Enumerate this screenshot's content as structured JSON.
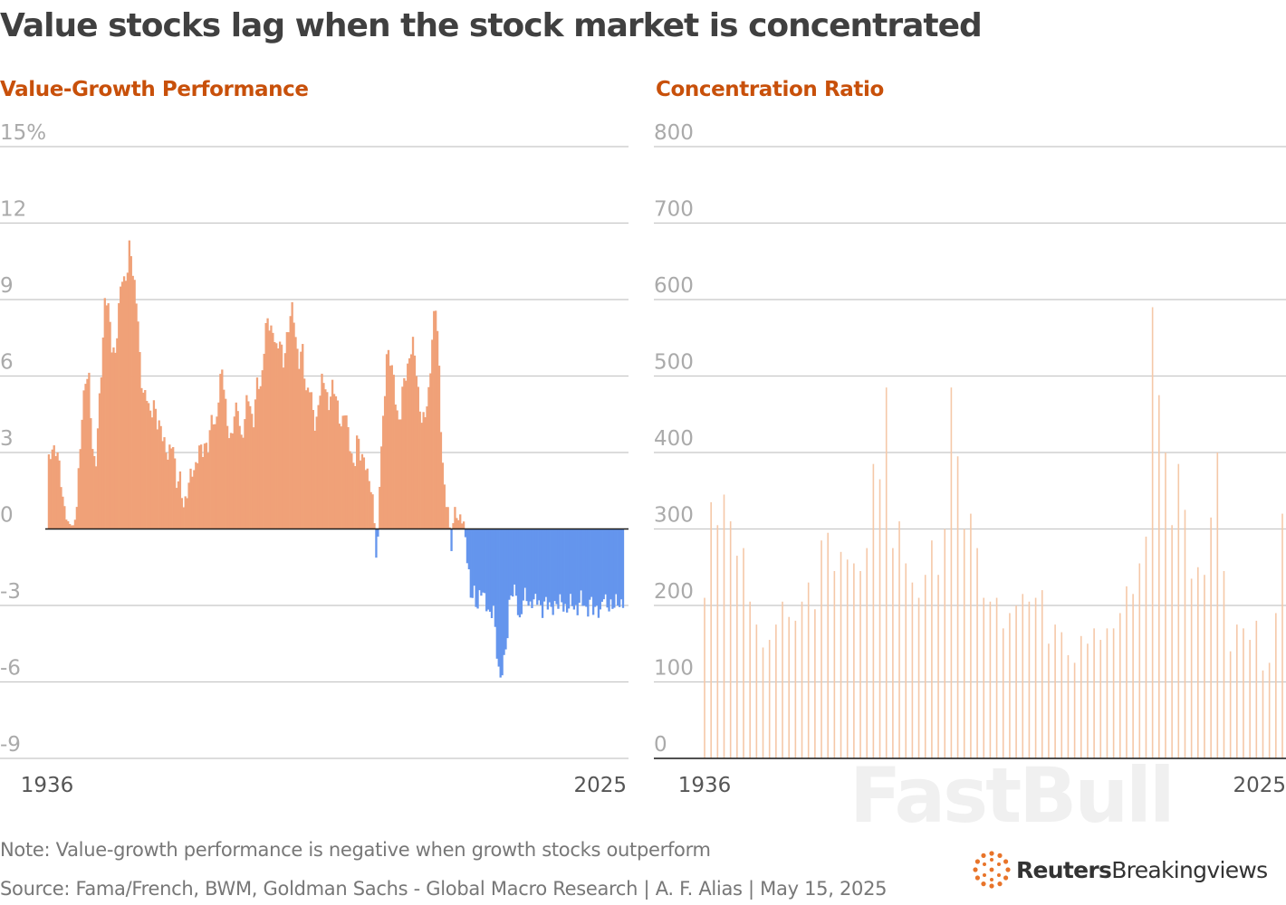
{
  "title": "Value stocks lag when the stock market is concentrated",
  "note": "Note: Value-growth performance is negative when growth stocks outperform",
  "source": "Source: Fama/French, BWM, Goldman Sachs - Global Macro Research | A. F. Alias | May 15, 2025",
  "watermark": "FastBull",
  "logo": {
    "brand": "Reuters",
    "product": "Breakingviews"
  },
  "colors": {
    "positive": "#f0a178",
    "negative": "#6495ed",
    "concentration": "#f5c8a8",
    "panel_title": "#c8500a",
    "grid": "#c8c8c8",
    "baseline": "#1a1a1a"
  },
  "chart_data": [
    {
      "type": "bar",
      "panel_title": "Value-Growth Performance",
      "y_unit": "%",
      "ylim": [
        -9,
        15
      ],
      "yticks": [
        15,
        12,
        9,
        6,
        3,
        0,
        -3,
        -6,
        -9
      ],
      "ytick_labels": [
        "15%",
        "12",
        "9",
        "6",
        "3",
        "0",
        "-3",
        "-6",
        "-9"
      ],
      "xlim": [
        1936,
        2025
      ],
      "xtick_labels": [
        "1936",
        "2025"
      ],
      "grid": true,
      "points": [
        [
          1936,
          0.0
        ],
        [
          1936.2,
          2.8
        ],
        [
          1936.6,
          3.2
        ],
        [
          1937,
          3.0
        ],
        [
          1937.5,
          2.9
        ],
        [
          1938,
          2.6
        ],
        [
          1938.5,
          1.0
        ],
        [
          1939,
          0.4
        ],
        [
          1939.5,
          0.2
        ],
        [
          1940,
          0.1
        ],
        [
          1940.5,
          0.5
        ],
        [
          1941,
          2.5
        ],
        [
          1941.5,
          5.0
        ],
        [
          1942,
          6.0
        ],
        [
          1942.5,
          5.7
        ],
        [
          1943,
          3.3
        ],
        [
          1943.5,
          2.5
        ],
        [
          1944,
          4.5
        ],
        [
          1944.5,
          6.5
        ],
        [
          1945,
          9.5
        ],
        [
          1945.5,
          8.7
        ],
        [
          1946,
          7.0
        ],
        [
          1946.5,
          6.8
        ],
        [
          1947,
          8.5
        ],
        [
          1947.5,
          9.8
        ],
        [
          1948,
          9.5
        ],
        [
          1948.5,
          10.5
        ],
        [
          1948.8,
          11.5
        ],
        [
          1949.2,
          10.0
        ],
        [
          1949.5,
          9.4
        ],
        [
          1950,
          8.7
        ],
        [
          1950.5,
          6.0
        ],
        [
          1951,
          5.0
        ],
        [
          1951.5,
          5.2
        ],
        [
          1952,
          4.6
        ],
        [
          1952.5,
          4.9
        ],
        [
          1953,
          4.0
        ],
        [
          1953.5,
          4.2
        ],
        [
          1954,
          3.7
        ],
        [
          1954.5,
          2.6
        ],
        [
          1955,
          3.1
        ],
        [
          1955.5,
          3.6
        ],
        [
          1956,
          1.6
        ],
        [
          1956.5,
          2.0
        ],
        [
          1957,
          1.1
        ],
        [
          1957.5,
          1.2
        ],
        [
          1958,
          1.8
        ],
        [
          1958.5,
          2.3
        ],
        [
          1959,
          2.6
        ],
        [
          1959.5,
          3.1
        ],
        [
          1960,
          2.9
        ],
        [
          1960.5,
          3.5
        ],
        [
          1961,
          3.3
        ],
        [
          1961.5,
          4.4
        ],
        [
          1962,
          3.9
        ],
        [
          1962.5,
          5.3
        ],
        [
          1963,
          6.3
        ],
        [
          1963.5,
          5.0
        ],
        [
          1964,
          4.0
        ],
        [
          1964.5,
          3.5
        ],
        [
          1965,
          4.4
        ],
        [
          1965.5,
          4.9
        ],
        [
          1966,
          3.6
        ],
        [
          1966.5,
          3.9
        ],
        [
          1967,
          5.4
        ],
        [
          1967.5,
          4.7
        ],
        [
          1968,
          4.2
        ],
        [
          1968.5,
          5.8
        ],
        [
          1969,
          5.5
        ],
        [
          1969.5,
          7.1
        ],
        [
          1970,
          8.2
        ],
        [
          1970.5,
          7.7
        ],
        [
          1971,
          8.0
        ],
        [
          1971.5,
          6.9
        ],
        [
          1972,
          7.3
        ],
        [
          1972.5,
          6.6
        ],
        [
          1973,
          7.5
        ],
        [
          1973.5,
          8.0
        ],
        [
          1974,
          8.8
        ],
        [
          1974.5,
          7.4
        ],
        [
          1975,
          6.4
        ],
        [
          1975.5,
          7.0
        ],
        [
          1976,
          5.4
        ],
        [
          1976.5,
          5.8
        ],
        [
          1977,
          4.7
        ],
        [
          1977.5,
          3.8
        ],
        [
          1978,
          5.3
        ],
        [
          1978.5,
          5.8
        ],
        [
          1979,
          5.5
        ],
        [
          1979.5,
          4.9
        ],
        [
          1980,
          5.7
        ],
        [
          1980.5,
          5.2
        ],
        [
          1981,
          4.7
        ],
        [
          1981.5,
          4.1
        ],
        [
          1982,
          4.6
        ],
        [
          1982.5,
          3.8
        ],
        [
          1983,
          3.1
        ],
        [
          1983.5,
          2.4
        ],
        [
          1984,
          3.6
        ],
        [
          1984.5,
          2.8
        ],
        [
          1985,
          3.0
        ],
        [
          1985.5,
          2.0
        ],
        [
          1986,
          1.6
        ],
        [
          1986.5,
          1.0
        ],
        [
          1987,
          -1.7
        ],
        [
          1987.5,
          2.5
        ],
        [
          1988,
          4.5
        ],
        [
          1988.5,
          7.1
        ],
        [
          1989,
          6.5
        ],
        [
          1989.5,
          6.0
        ],
        [
          1990,
          4.9
        ],
        [
          1990.5,
          4.0
        ],
        [
          1991,
          5.5
        ],
        [
          1991.5,
          6.2
        ],
        [
          1992,
          6.8
        ],
        [
          1992.5,
          7.2
        ],
        [
          1993,
          6.4
        ],
        [
          1993.5,
          5.1
        ],
        [
          1994,
          4.1
        ],
        [
          1994.5,
          4.4
        ],
        [
          1995,
          5.5
        ],
        [
          1995.5,
          7.5
        ],
        [
          1996,
          8.8
        ],
        [
          1996.5,
          7.0
        ],
        [
          1997,
          3.2
        ],
        [
          1997.5,
          1.2
        ],
        [
          1998,
          0.5
        ],
        [
          1998.5,
          -0.5
        ],
        [
          1999,
          0.9
        ],
        [
          1999.5,
          0.3
        ],
        [
          2000,
          0.6
        ],
        [
          2000.5,
          0.2
        ],
        [
          2001,
          -1.5
        ],
        [
          2001.5,
          -2.8
        ],
        [
          2002,
          -2.3
        ],
        [
          2002.5,
          -3.1
        ],
        [
          2003,
          -2.6
        ],
        [
          2003.5,
          -2.5
        ],
        [
          2004,
          -2.9
        ],
        [
          2004.5,
          -3.6
        ],
        [
          2005,
          -3.2
        ],
        [
          2005.5,
          -4.6
        ],
        [
          2006,
          -6.0
        ],
        [
          2006.5,
          -5.5
        ],
        [
          2007,
          -4.5
        ],
        [
          2007.5,
          -2.5
        ],
        [
          2008,
          -2.6
        ],
        [
          2008.5,
          -2.6
        ],
        [
          2009,
          -3.6
        ],
        [
          2009.5,
          -2.8
        ],
        [
          2010,
          -2.7
        ],
        [
          2010.5,
          -3.0
        ],
        [
          2011,
          -2.7
        ],
        [
          2011.5,
          -2.9
        ],
        [
          2012,
          -2.9
        ],
        [
          2012.5,
          -3.1
        ],
        [
          2013,
          -2.8
        ],
        [
          2013.5,
          -3.2
        ],
        [
          2014,
          -3.0
        ],
        [
          2014.5,
          -2.9
        ],
        [
          2015,
          -3.1
        ],
        [
          2015.5,
          -2.8
        ],
        [
          2016,
          -3.0
        ],
        [
          2016.5,
          -3.2
        ],
        [
          2017,
          -2.9
        ],
        [
          2017.5,
          -3.0
        ],
        [
          2018,
          -3.1
        ],
        [
          2018.5,
          -2.8
        ],
        [
          2019,
          -3.0
        ],
        [
          2019.5,
          -3.1
        ],
        [
          2020,
          -2.8
        ],
        [
          2020.5,
          -3.4
        ],
        [
          2021,
          -2.9
        ],
        [
          2021.5,
          -3.3
        ],
        [
          2022,
          -2.7
        ],
        [
          2022.5,
          -3.0
        ],
        [
          2023,
          -2.8
        ],
        [
          2023.5,
          -3.2
        ],
        [
          2024,
          -2.9
        ],
        [
          2024.5,
          -2.8
        ],
        [
          2025,
          -2.9
        ]
      ]
    },
    {
      "type": "bar",
      "panel_title": "Concentration Ratio",
      "ylim": [
        0,
        800
      ],
      "yticks": [
        800,
        700,
        600,
        500,
        400,
        300,
        200,
        100,
        0
      ],
      "ytick_labels": [
        "800",
        "700",
        "600",
        "500",
        "400",
        "300",
        "200",
        "100",
        "0"
      ],
      "xlim": [
        1936,
        2025
      ],
      "xtick_labels": [
        "1936",
        "2025"
      ],
      "grid": true,
      "points": [
        [
          1936,
          210
        ],
        [
          1937,
          335
        ],
        [
          1938,
          305
        ],
        [
          1939,
          345
        ],
        [
          1940,
          310
        ],
        [
          1941,
          265
        ],
        [
          1942,
          275
        ],
        [
          1943,
          205
        ],
        [
          1944,
          175
        ],
        [
          1945,
          145
        ],
        [
          1946,
          155
        ],
        [
          1947,
          175
        ],
        [
          1948,
          205
        ],
        [
          1949,
          185
        ],
        [
          1950,
          180
        ],
        [
          1951,
          205
        ],
        [
          1952,
          230
        ],
        [
          1953,
          195
        ],
        [
          1954,
          285
        ],
        [
          1955,
          295
        ],
        [
          1956,
          245
        ],
        [
          1957,
          270
        ],
        [
          1958,
          260
        ],
        [
          1959,
          255
        ],
        [
          1960,
          245
        ],
        [
          1961,
          275
        ],
        [
          1962,
          385
        ],
        [
          1963,
          365
        ],
        [
          1964,
          485
        ],
        [
          1965,
          275
        ],
        [
          1966,
          310
        ],
        [
          1967,
          255
        ],
        [
          1968,
          230
        ],
        [
          1969,
          210
        ],
        [
          1970,
          240
        ],
        [
          1971,
          285
        ],
        [
          1972,
          240
        ],
        [
          1973,
          300
        ],
        [
          1974,
          485
        ],
        [
          1975,
          395
        ],
        [
          1976,
          300
        ],
        [
          1977,
          320
        ],
        [
          1978,
          275
        ],
        [
          1979,
          210
        ],
        [
          1980,
          205
        ],
        [
          1981,
          210
        ],
        [
          1982,
          170
        ],
        [
          1983,
          190
        ],
        [
          1984,
          200
        ],
        [
          1985,
          215
        ],
        [
          1986,
          205
        ],
        [
          1987,
          210
        ],
        [
          1988,
          220
        ],
        [
          1989,
          150
        ],
        [
          1990,
          175
        ],
        [
          1991,
          165
        ],
        [
          1992,
          135
        ],
        [
          1993,
          125
        ],
        [
          1994,
          160
        ],
        [
          1995,
          150
        ],
        [
          1996,
          170
        ],
        [
          1997,
          155
        ],
        [
          1998,
          170
        ],
        [
          1999,
          170
        ],
        [
          2000,
          190
        ],
        [
          2001,
          225
        ],
        [
          2002,
          215
        ],
        [
          2003,
          255
        ],
        [
          2004,
          290
        ],
        [
          2005,
          590
        ],
        [
          2006,
          475
        ],
        [
          2007,
          400
        ],
        [
          2008,
          305
        ],
        [
          2009,
          385
        ],
        [
          2010,
          325
        ],
        [
          2011,
          235
        ],
        [
          2012,
          250
        ],
        [
          2013,
          240
        ],
        [
          2014,
          315
        ],
        [
          2015,
          400
        ],
        [
          2016,
          245
        ],
        [
          2017,
          140
        ],
        [
          2018,
          175
        ],
        [
          2019,
          170
        ],
        [
          2020,
          155
        ],
        [
          2021,
          180
        ],
        [
          2022,
          115
        ],
        [
          2023,
          125
        ],
        [
          2024,
          190
        ],
        [
          2025,
          320
        ]
      ]
    }
  ]
}
